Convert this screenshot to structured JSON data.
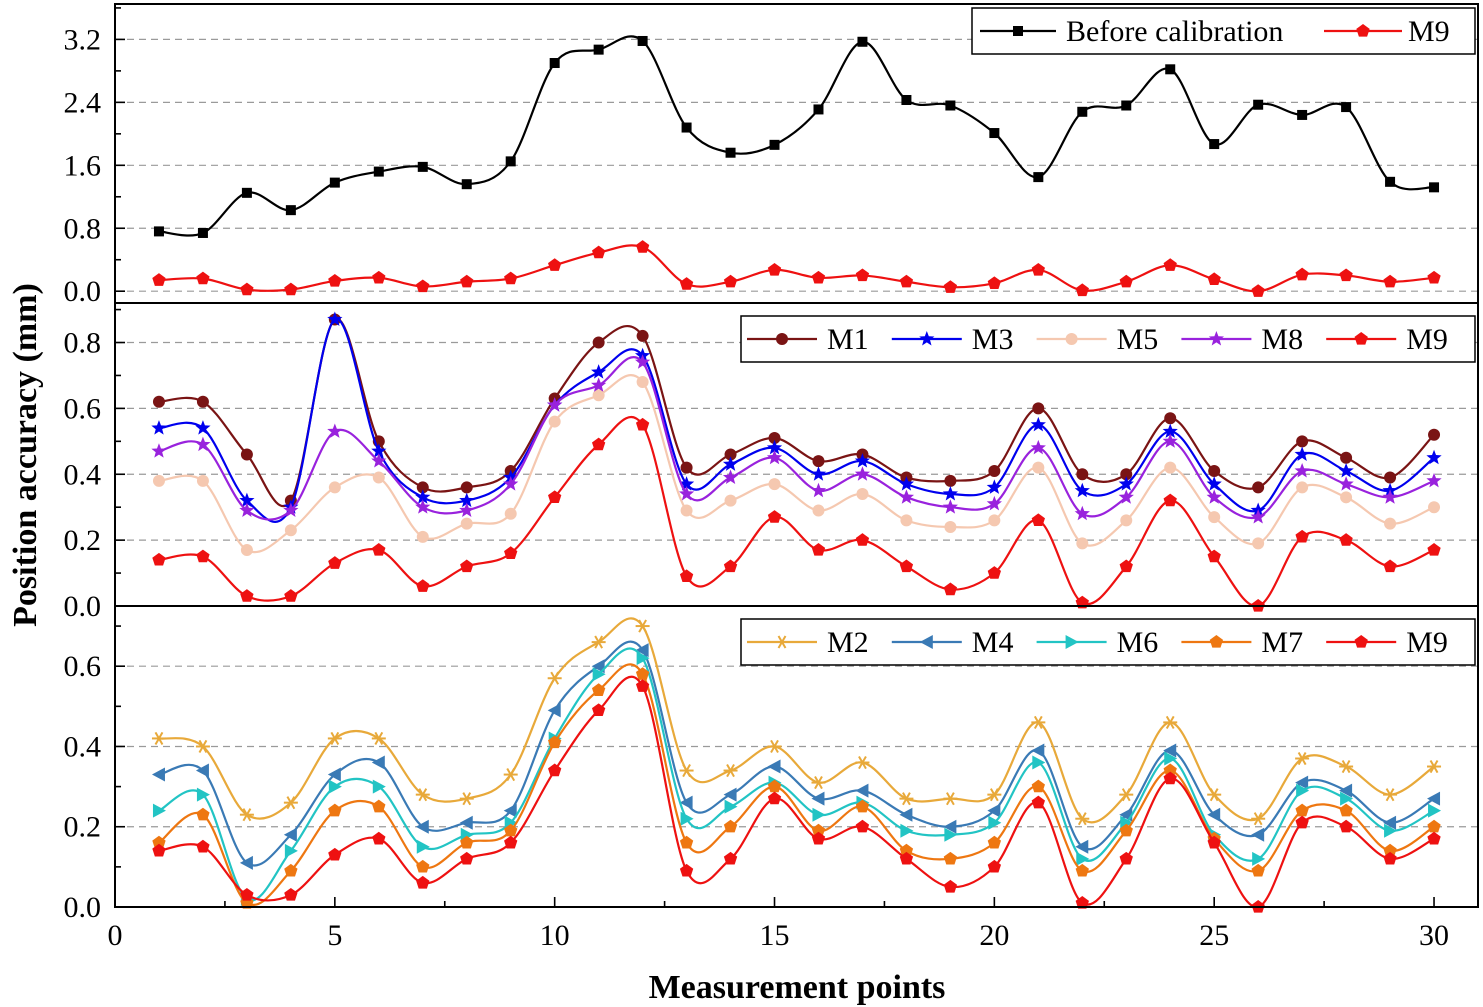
{
  "chart_data": {
    "type": "line",
    "xlabel": "Measurement points",
    "ylabel": "Position accuracy (mm)",
    "xlim": [
      0,
      31
    ],
    "xticks": [
      0,
      5,
      10,
      15,
      20,
      25,
      30
    ],
    "grid": "horizontal dashed",
    "legend_position": "top-right",
    "panels": [
      {
        "id": "top",
        "ylim": [
          -0.15,
          3.65
        ],
        "yticks": [
          0.0,
          0.8,
          1.6,
          2.4,
          3.2
        ],
        "ytick_labels": [
          "0.0",
          "0.8",
          "1.6",
          "2.4",
          "3.2"
        ],
        "series": [
          {
            "name": "Before calibration",
            "color": "#000000",
            "marker": "square",
            "values": [
              0.76,
              0.74,
              1.25,
              1.03,
              1.38,
              1.52,
              1.58,
              1.36,
              1.65,
              2.9,
              3.07,
              3.18,
              2.08,
              1.76,
              1.86,
              2.31,
              3.17,
              2.43,
              2.36,
              2.01,
              1.45,
              2.28,
              2.36,
              2.82,
              1.87,
              2.37,
              2.24,
              2.34,
              1.39,
              1.32
            ]
          },
          {
            "name": "M9",
            "color": "#ee1111",
            "marker": "pentagon",
            "values": [
              0.14,
              0.16,
              0.02,
              0.02,
              0.13,
              0.17,
              0.06,
              0.12,
              0.16,
              0.33,
              0.49,
              0.56,
              0.09,
              0.12,
              0.27,
              0.17,
              0.2,
              0.12,
              0.05,
              0.1,
              0.27,
              0.01,
              0.12,
              0.33,
              0.15,
              0.0,
              0.21,
              0.2,
              0.12,
              0.17
            ]
          }
        ]
      },
      {
        "id": "middle",
        "ylim": [
          0.0,
          0.92
        ],
        "yticks": [
          0.0,
          0.2,
          0.4,
          0.6,
          0.8
        ],
        "ytick_labels": [
          "0.0",
          "0.2",
          "0.4",
          "0.6",
          "0.8"
        ],
        "series": [
          {
            "name": "M1",
            "color": "#7a1414",
            "marker": "circle",
            "values": [
              0.62,
              0.62,
              0.46,
              0.32,
              0.87,
              0.5,
              0.36,
              0.36,
              0.41,
              0.63,
              0.8,
              0.82,
              0.42,
              0.46,
              0.51,
              0.44,
              0.46,
              0.39,
              0.38,
              0.41,
              0.6,
              0.4,
              0.4,
              0.57,
              0.41,
              0.36,
              0.5,
              0.45,
              0.39,
              0.52
            ]
          },
          {
            "name": "M3",
            "color": "#0000ee",
            "marker": "star",
            "values": [
              0.54,
              0.54,
              0.32,
              0.3,
              0.87,
              0.47,
              0.33,
              0.32,
              0.39,
              0.61,
              0.71,
              0.76,
              0.37,
              0.43,
              0.48,
              0.4,
              0.44,
              0.37,
              0.34,
              0.36,
              0.55,
              0.35,
              0.37,
              0.53,
              0.37,
              0.29,
              0.46,
              0.41,
              0.35,
              0.45
            ]
          },
          {
            "name": "M5",
            "color": "#f5c8b0",
            "marker": "circle",
            "values": [
              0.38,
              0.38,
              0.17,
              0.23,
              0.36,
              0.39,
              0.21,
              0.25,
              0.28,
              0.56,
              0.64,
              0.68,
              0.29,
              0.32,
              0.37,
              0.29,
              0.34,
              0.26,
              0.24,
              0.26,
              0.42,
              0.19,
              0.26,
              0.42,
              0.27,
              0.19,
              0.36,
              0.33,
              0.25,
              0.3
            ]
          },
          {
            "name": "M8",
            "color": "#9922dd",
            "marker": "star",
            "values": [
              0.47,
              0.49,
              0.29,
              0.29,
              0.53,
              0.44,
              0.3,
              0.29,
              0.37,
              0.61,
              0.67,
              0.74,
              0.34,
              0.39,
              0.45,
              0.35,
              0.4,
              0.33,
              0.3,
              0.31,
              0.48,
              0.28,
              0.33,
              0.5,
              0.33,
              0.27,
              0.41,
              0.37,
              0.33,
              0.38
            ]
          },
          {
            "name": "M9",
            "color": "#ee1111",
            "marker": "pentagon",
            "values": [
              0.14,
              0.15,
              0.03,
              0.03,
              0.13,
              0.17,
              0.06,
              0.12,
              0.16,
              0.33,
              0.49,
              0.55,
              0.09,
              0.12,
              0.27,
              0.17,
              0.2,
              0.12,
              0.05,
              0.1,
              0.26,
              0.01,
              0.12,
              0.32,
              0.15,
              0.0,
              0.21,
              0.2,
              0.12,
              0.17
            ]
          }
        ]
      },
      {
        "id": "bottom",
        "ylim": [
          0.0,
          0.75
        ],
        "yticks": [
          0.0,
          0.2,
          0.4,
          0.6
        ],
        "ytick_labels": [
          "0.0",
          "0.2",
          "0.4",
          "0.6"
        ],
        "series": [
          {
            "name": "M2",
            "color": "#e8a93a",
            "marker": "asterisk",
            "values": [
              0.42,
              0.4,
              0.23,
              0.26,
              0.42,
              0.42,
              0.28,
              0.27,
              0.33,
              0.57,
              0.66,
              0.7,
              0.34,
              0.34,
              0.4,
              0.31,
              0.36,
              0.27,
              0.27,
              0.28,
              0.46,
              0.22,
              0.28,
              0.46,
              0.28,
              0.22,
              0.37,
              0.35,
              0.28,
              0.35
            ]
          },
          {
            "name": "M4",
            "color": "#3a7ab5",
            "marker": "triangle-left",
            "values": [
              0.33,
              0.34,
              0.11,
              0.18,
              0.33,
              0.36,
              0.2,
              0.21,
              0.24,
              0.49,
              0.6,
              0.64,
              0.26,
              0.28,
              0.35,
              0.27,
              0.29,
              0.23,
              0.2,
              0.24,
              0.39,
              0.15,
              0.23,
              0.39,
              0.23,
              0.18,
              0.31,
              0.29,
              0.21,
              0.27
            ]
          },
          {
            "name": "M6",
            "color": "#22c4c4",
            "marker": "triangle-right",
            "values": [
              0.24,
              0.28,
              0.02,
              0.14,
              0.3,
              0.3,
              0.15,
              0.18,
              0.21,
              0.42,
              0.58,
              0.62,
              0.22,
              0.25,
              0.31,
              0.23,
              0.26,
              0.19,
              0.18,
              0.21,
              0.36,
              0.12,
              0.21,
              0.37,
              0.18,
              0.12,
              0.29,
              0.27,
              0.19,
              0.24
            ]
          },
          {
            "name": "M7",
            "color": "#ee7711",
            "marker": "pentagon",
            "values": [
              0.16,
              0.23,
              0.01,
              0.09,
              0.24,
              0.25,
              0.1,
              0.16,
              0.19,
              0.41,
              0.54,
              0.58,
              0.16,
              0.2,
              0.3,
              0.19,
              0.25,
              0.14,
              0.12,
              0.16,
              0.3,
              0.09,
              0.19,
              0.34,
              0.17,
              0.09,
              0.24,
              0.24,
              0.14,
              0.2
            ]
          },
          {
            "name": "M9",
            "color": "#ee1111",
            "marker": "pentagon",
            "values": [
              0.14,
              0.15,
              0.03,
              0.03,
              0.13,
              0.17,
              0.06,
              0.12,
              0.16,
              0.34,
              0.49,
              0.55,
              0.09,
              0.12,
              0.27,
              0.17,
              0.2,
              0.12,
              0.05,
              0.1,
              0.26,
              0.01,
              0.12,
              0.32,
              0.16,
              0.0,
              0.21,
              0.2,
              0.12,
              0.17
            ]
          }
        ]
      }
    ]
  }
}
